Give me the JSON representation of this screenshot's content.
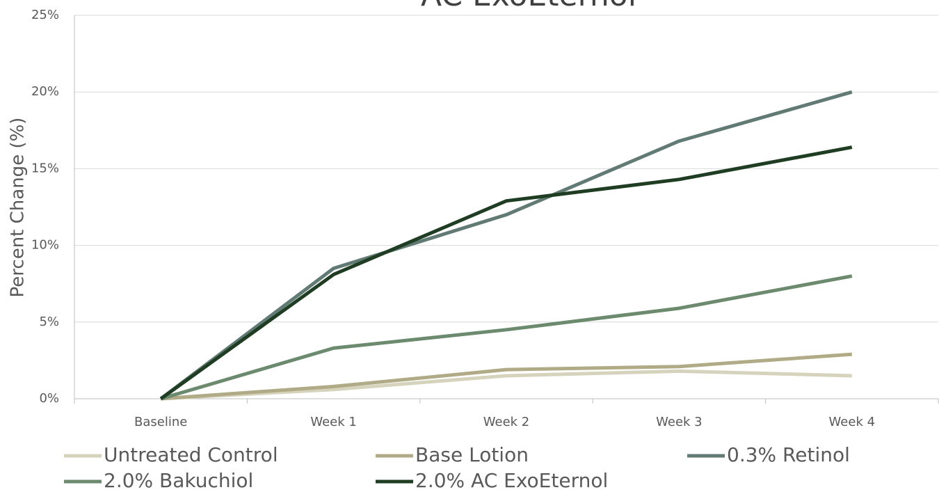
{
  "chart_data": {
    "type": "line",
    "title": "AC ExoEternol",
    "y_label": "Percent Change (%)",
    "categories": [
      "Baseline",
      "Week 1",
      "Week 2",
      "Week 3",
      "Week 4"
    ],
    "series": [
      {
        "name": "Untreated Control",
        "color": "#d6d3bd",
        "values": [
          0,
          0.6,
          1.5,
          1.8,
          1.5
        ]
      },
      {
        "name": "Base Lotion",
        "color": "#b0ab86",
        "values": [
          0,
          0.8,
          1.9,
          2.1,
          2.9
        ]
      },
      {
        "name": "0.3% Retinol",
        "color": "#627a74",
        "values": [
          0,
          8.5,
          12.0,
          16.8,
          20.0
        ]
      },
      {
        "name": "2.0% Bakuchiol",
        "color": "#6b8a6e",
        "values": [
          0,
          3.3,
          4.5,
          5.9,
          8.0
        ]
      },
      {
        "name": "2.0% AC ExoEternol",
        "color": "#1f3d22",
        "values": [
          0,
          8.1,
          12.9,
          14.3,
          16.4
        ]
      }
    ],
    "ylim": [
      0,
      25
    ],
    "yticks": [
      {
        "value": 0,
        "label": "0%"
      },
      {
        "value": 5,
        "label": "5%"
      },
      {
        "value": 10,
        "label": "10%"
      },
      {
        "value": 15,
        "label": "15%"
      },
      {
        "value": 20,
        "label": "20%"
      },
      {
        "value": 25,
        "label": "25%"
      }
    ],
    "grid": true,
    "legend": "bottom"
  }
}
